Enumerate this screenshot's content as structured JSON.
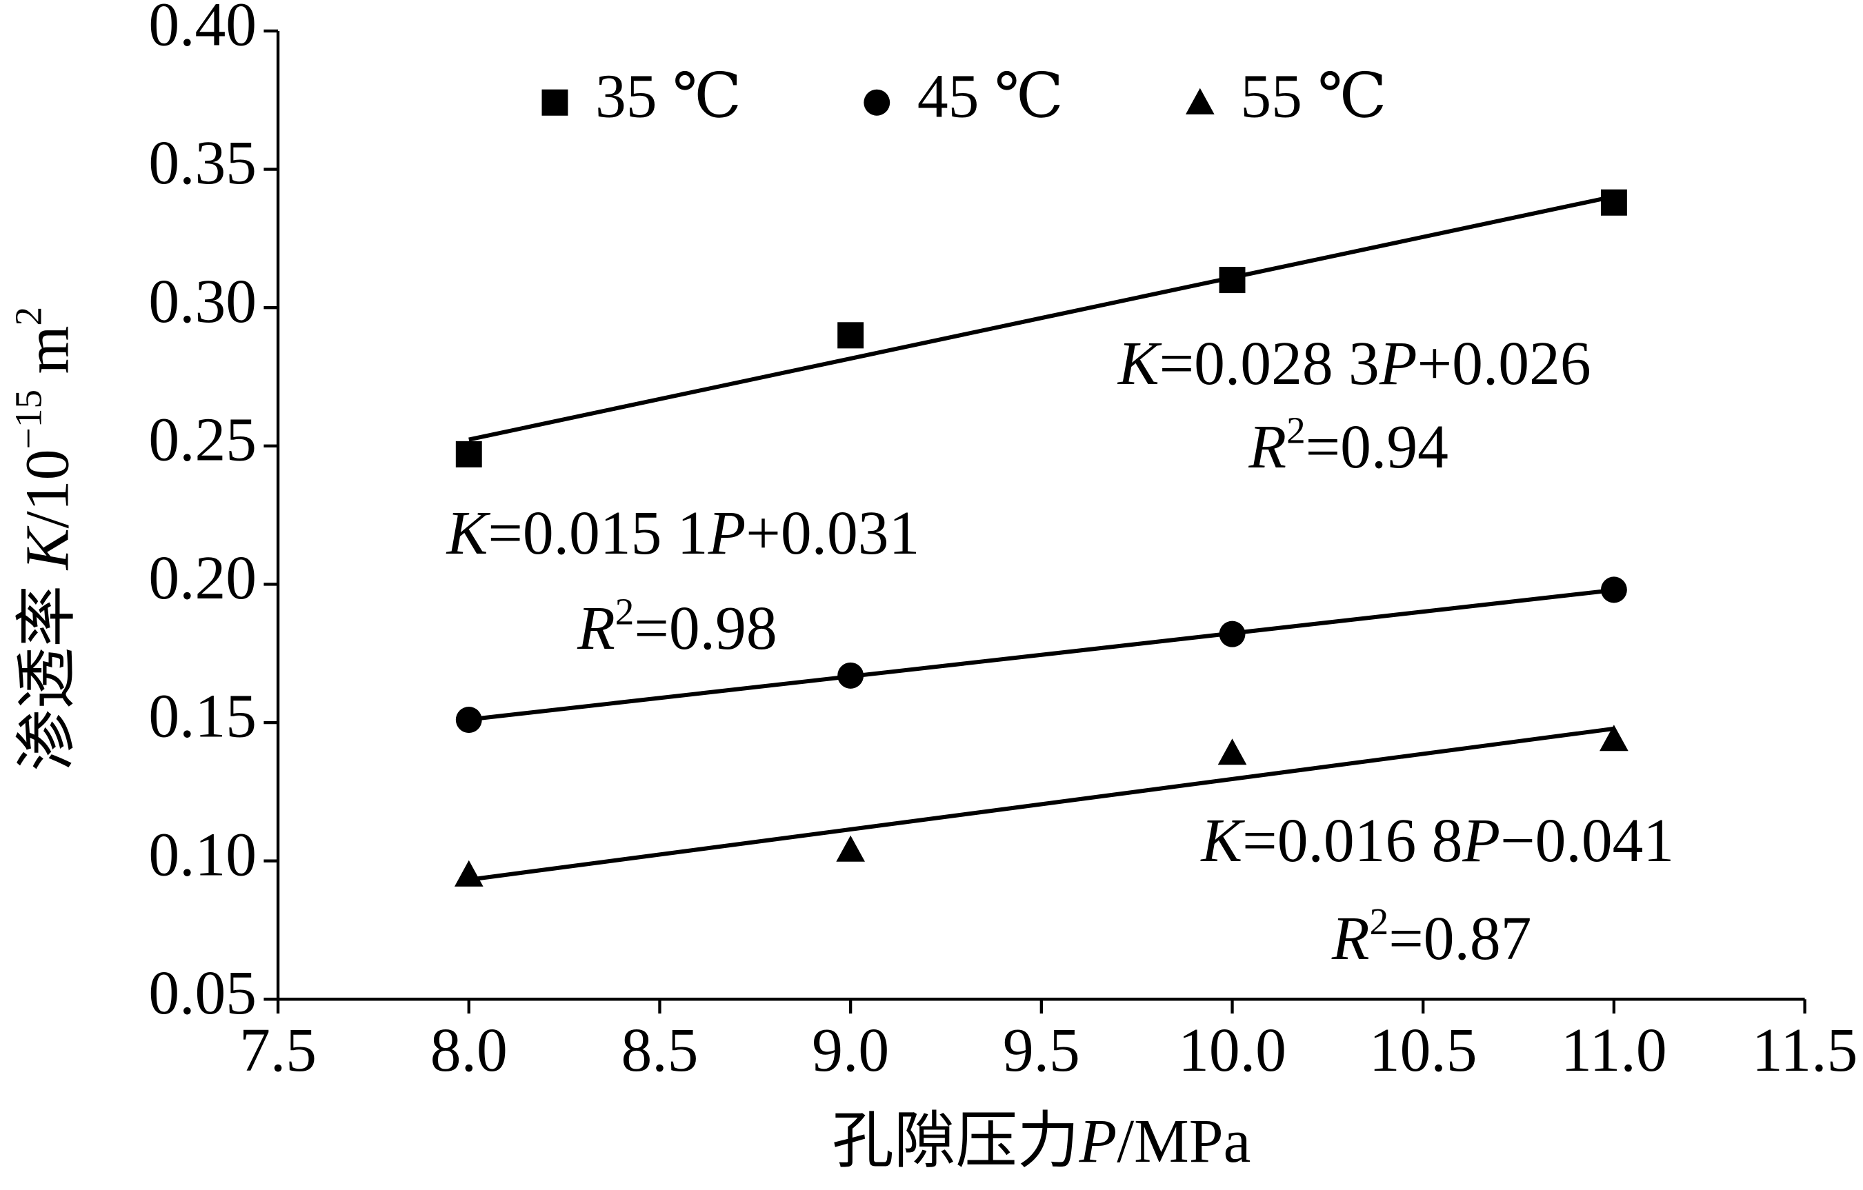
{
  "chart_data": {
    "type": "scatter",
    "x_label": [
      "孔隙压力",
      "P",
      "/MPa"
    ],
    "y_label": [
      "渗透率 ",
      "K",
      "/10",
      "−15",
      " m",
      "2"
    ],
    "x": [
      8,
      9,
      10,
      11
    ],
    "series": [
      {
        "name": "35 ℃",
        "color": "#000000",
        "marker": "square",
        "values": [
          0.247,
          0.29,
          0.31,
          0.338
        ]
      },
      {
        "name": "45 ℃",
        "color": "#000000",
        "marker": "circle",
        "values": [
          0.151,
          0.167,
          0.182,
          0.198
        ]
      },
      {
        "name": "55 ℃",
        "color": "#000000",
        "marker": "triangle",
        "values": [
          0.095,
          0.104,
          0.139,
          0.144
        ]
      }
    ],
    "trendline": true,
    "annotations": [
      {
        "equation": [
          "K",
          "=0.028 3",
          "P",
          "+0.026"
        ],
        "r2": [
          "R",
          "2",
          "=0.94"
        ]
      },
      {
        "equation": [
          "K",
          "=0.015 1",
          "P",
          "+0.031"
        ],
        "r2": [
          "R",
          "2",
          "=0.98"
        ]
      },
      {
        "equation": [
          "K",
          "=0.016 8",
          "P",
          "−0.041"
        ],
        "r2": [
          "R",
          "2",
          "=0.87"
        ]
      }
    ],
    "xlim": [
      7.5,
      11.5
    ],
    "xticks": [
      7.5,
      {
        "value": 8,
        "label": "8.0"
      },
      8.5,
      {
        "value": 9,
        "label": "9.0"
      },
      9.5,
      {
        "value": 10,
        "label": "10.0"
      },
      10.5,
      {
        "value": 11,
        "label": "11.0"
      },
      11.5
    ],
    "ylim": [
      0.05,
      0.4
    ],
    "yticks": [
      0.05,
      {
        "value": 0.1,
        "label": "0.10"
      },
      0.15,
      {
        "value": 0.2,
        "label": "0.20"
      },
      0.25,
      {
        "value": 0.3,
        "label": "0.30"
      },
      0.35,
      {
        "value": 0.4,
        "label": "0.40"
      }
    ],
    "grid": false,
    "legend": "top"
  }
}
